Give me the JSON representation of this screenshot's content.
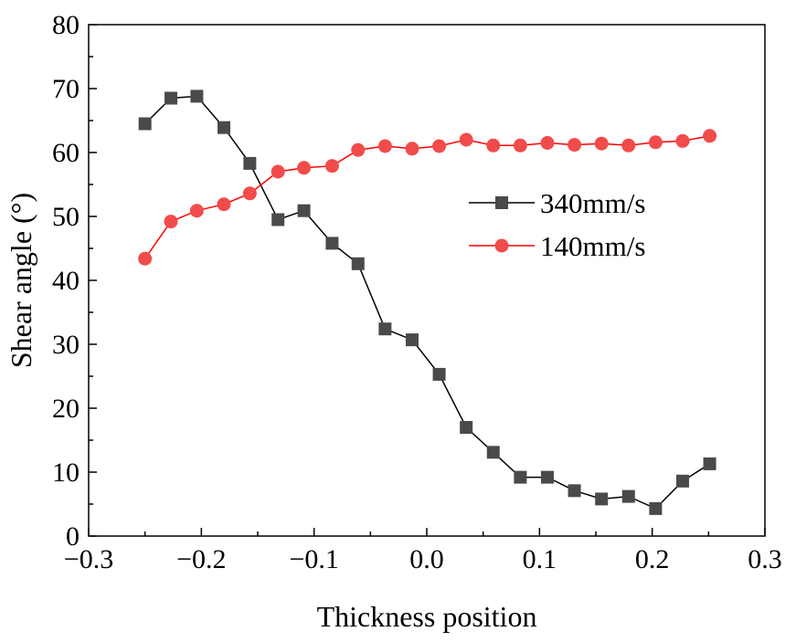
{
  "chart_data": {
    "type": "line",
    "title": "",
    "xlabel": "Thickness position",
    "ylabel": "Shear angle (°)",
    "xlim": [
      -0.3,
      0.3
    ],
    "ylim": [
      0,
      80
    ],
    "x_ticks": [
      -0.3,
      -0.2,
      -0.1,
      0.0,
      0.1,
      0.2,
      0.3
    ],
    "x_tick_labels": [
      "−0.3",
      "−0.2",
      "−0.1",
      "0.0",
      "0.1",
      "0.2",
      "0.3"
    ],
    "y_ticks": [
      0,
      10,
      20,
      30,
      40,
      50,
      60,
      70,
      80
    ],
    "y_tick_labels": [
      "0",
      "10",
      "20",
      "30",
      "40",
      "50",
      "60",
      "70",
      "80"
    ],
    "grid": false,
    "legend_position": "center-right",
    "x": [
      -0.25,
      -0.227,
      -0.204,
      -0.18,
      -0.157,
      -0.132,
      -0.109,
      -0.084,
      -0.061,
      -0.037,
      -0.013,
      0.011,
      0.035,
      0.059,
      0.083,
      0.107,
      0.131,
      0.155,
      0.179,
      0.203,
      0.227,
      0.251
    ],
    "series": [
      {
        "name": "340mm/s",
        "color": "#4a4a4a",
        "line_color": "#000000",
        "marker": "square",
        "values": [
          64.5,
          68.5,
          68.8,
          63.9,
          58.3,
          49.5,
          50.9,
          45.8,
          42.6,
          32.4,
          30.7,
          25.3,
          17.0,
          13.1,
          9.2,
          9.2,
          7.1,
          5.8,
          6.2,
          4.3,
          8.6,
          11.3
        ]
      },
      {
        "name": "140mm/s",
        "color": "#f24b4b",
        "line_color": "#ff0000",
        "marker": "circle",
        "values": [
          43.4,
          49.2,
          50.9,
          51.9,
          53.6,
          57.0,
          57.6,
          57.9,
          60.4,
          61.0,
          60.6,
          61.0,
          62.0,
          61.1,
          61.1,
          61.5,
          61.2,
          61.4,
          61.1,
          61.6,
          61.8,
          62.6
        ]
      }
    ]
  }
}
